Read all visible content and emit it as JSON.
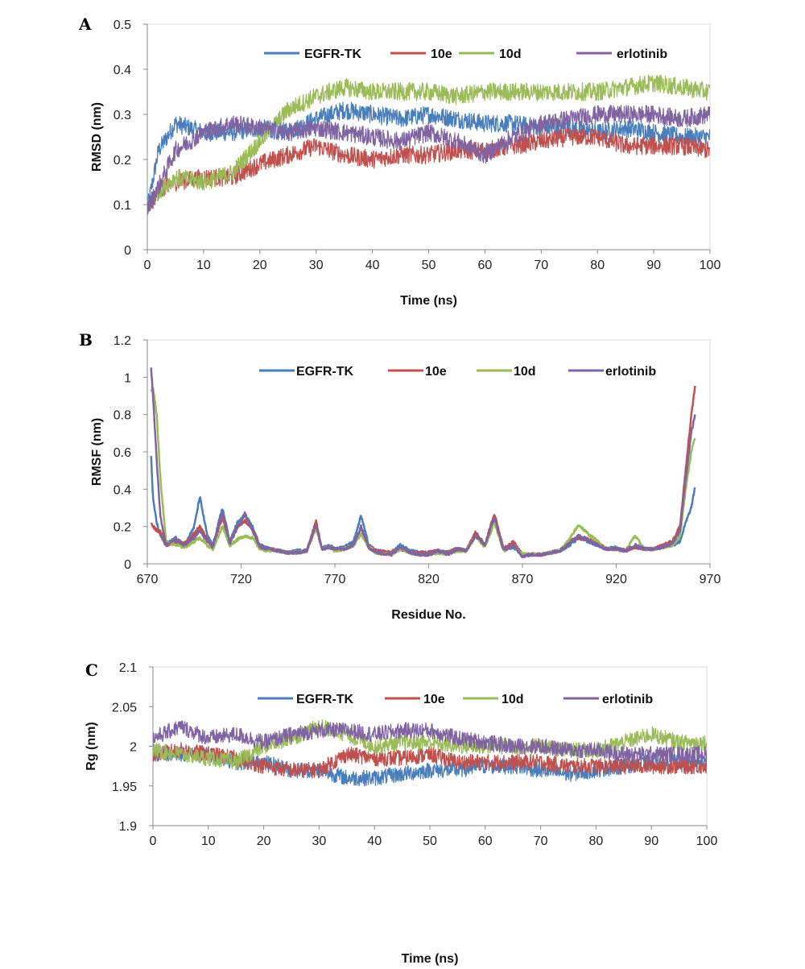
{
  "chart_data": [
    {
      "panel": "A",
      "type": "line",
      "xlabel": "Time (ns)",
      "ylabel": "RMSD (nm)",
      "xlim": [
        0,
        100
      ],
      "ylim": [
        0,
        0.5
      ],
      "xticks": [
        0,
        10,
        20,
        30,
        40,
        50,
        60,
        70,
        80,
        90,
        100
      ],
      "yticks": [
        0,
        0.1,
        0.2,
        0.3,
        0.4,
        0.5
      ],
      "legend_position": "top",
      "grid": false,
      "noise": 0.02,
      "series": [
        {
          "name": "EGFR-TK",
          "color": "#4a7ebb",
          "x": [
            0,
            2,
            5,
            10,
            15,
            20,
            25,
            30,
            35,
            40,
            45,
            50,
            55,
            60,
            65,
            70,
            75,
            80,
            85,
            90,
            95,
            100
          ],
          "values": [
            0.09,
            0.22,
            0.28,
            0.26,
            0.26,
            0.27,
            0.26,
            0.29,
            0.31,
            0.3,
            0.29,
            0.3,
            0.29,
            0.28,
            0.28,
            0.27,
            0.27,
            0.26,
            0.27,
            0.26,
            0.25,
            0.25
          ]
        },
        {
          "name": "10e",
          "color": "#c0504d",
          "x": [
            0,
            2,
            5,
            10,
            15,
            20,
            25,
            30,
            35,
            40,
            45,
            50,
            55,
            60,
            65,
            70,
            75,
            80,
            85,
            90,
            95,
            100
          ],
          "values": [
            0.09,
            0.13,
            0.15,
            0.16,
            0.16,
            0.19,
            0.21,
            0.23,
            0.21,
            0.2,
            0.21,
            0.21,
            0.22,
            0.22,
            0.23,
            0.24,
            0.25,
            0.25,
            0.23,
            0.23,
            0.23,
            0.22
          ]
        },
        {
          "name": "10d",
          "color": "#9bbb59",
          "x": [
            0,
            2,
            5,
            10,
            15,
            20,
            25,
            30,
            35,
            40,
            45,
            50,
            55,
            60,
            65,
            70,
            75,
            80,
            85,
            90,
            95,
            100
          ],
          "values": [
            0.09,
            0.13,
            0.16,
            0.15,
            0.17,
            0.24,
            0.31,
            0.34,
            0.36,
            0.35,
            0.35,
            0.35,
            0.34,
            0.35,
            0.35,
            0.35,
            0.35,
            0.35,
            0.36,
            0.37,
            0.36,
            0.35
          ]
        },
        {
          "name": "erlotinib",
          "color": "#8064a2",
          "x": [
            0,
            2,
            5,
            10,
            15,
            20,
            25,
            30,
            35,
            40,
            45,
            50,
            55,
            60,
            65,
            70,
            75,
            80,
            85,
            90,
            95,
            100
          ],
          "values": [
            0.09,
            0.14,
            0.22,
            0.26,
            0.28,
            0.27,
            0.26,
            0.27,
            0.26,
            0.25,
            0.24,
            0.26,
            0.24,
            0.21,
            0.25,
            0.28,
            0.29,
            0.3,
            0.3,
            0.3,
            0.29,
            0.3
          ]
        }
      ]
    },
    {
      "panel": "B",
      "type": "line",
      "xlabel": "Residue No.",
      "ylabel": "RMSF (nm)",
      "xlim": [
        670,
        970
      ],
      "ylim": [
        0,
        1.2
      ],
      "xticks": [
        670,
        720,
        770,
        820,
        870,
        920,
        970
      ],
      "yticks": [
        0,
        0.2,
        0.4,
        0.6,
        0.8,
        1,
        1.2
      ],
      "legend_position": "top",
      "grid": false,
      "noise": 0.008,
      "series": [
        {
          "name": "EGFR-TK",
          "color": "#4a7ebb",
          "x": [
            672,
            673,
            675,
            677,
            680,
            685,
            690,
            695,
            698,
            702,
            705,
            710,
            714,
            718,
            722,
            726,
            730,
            735,
            740,
            745,
            750,
            755,
            760,
            763,
            767,
            770,
            775,
            780,
            784,
            788,
            792,
            800,
            805,
            810,
            815,
            820,
            825,
            830,
            835,
            840,
            845,
            850,
            855,
            860,
            865,
            870,
            875,
            880,
            885,
            890,
            895,
            900,
            905,
            910,
            915,
            920,
            925,
            930,
            935,
            940,
            945,
            950,
            954,
            957,
            960,
            962
          ],
          "values": [
            0.58,
            0.35,
            0.22,
            0.15,
            0.1,
            0.14,
            0.1,
            0.2,
            0.36,
            0.15,
            0.1,
            0.3,
            0.12,
            0.22,
            0.26,
            0.2,
            0.1,
            0.08,
            0.07,
            0.06,
            0.07,
            0.07,
            0.22,
            0.08,
            0.1,
            0.08,
            0.09,
            0.12,
            0.26,
            0.1,
            0.07,
            0.06,
            0.1,
            0.07,
            0.06,
            0.06,
            0.07,
            0.06,
            0.08,
            0.07,
            0.16,
            0.1,
            0.24,
            0.08,
            0.09,
            0.05,
            0.05,
            0.05,
            0.06,
            0.07,
            0.1,
            0.14,
            0.12,
            0.1,
            0.08,
            0.09,
            0.07,
            0.09,
            0.08,
            0.08,
            0.09,
            0.1,
            0.12,
            0.22,
            0.3,
            0.41
          ]
        },
        {
          "name": "10e",
          "color": "#c0504d",
          "x": [
            672,
            673,
            675,
            677,
            680,
            685,
            690,
            695,
            698,
            702,
            705,
            710,
            714,
            718,
            722,
            726,
            730,
            735,
            740,
            745,
            750,
            755,
            760,
            763,
            767,
            770,
            775,
            780,
            784,
            788,
            792,
            800,
            805,
            810,
            815,
            820,
            825,
            830,
            835,
            840,
            845,
            850,
            855,
            860,
            865,
            870,
            875,
            880,
            885,
            890,
            895,
            900,
            905,
            910,
            915,
            920,
            925,
            930,
            935,
            940,
            945,
            950,
            954,
            957,
            960,
            962
          ],
          "values": [
            0.22,
            0.2,
            0.18,
            0.17,
            0.1,
            0.12,
            0.11,
            0.16,
            0.2,
            0.13,
            0.09,
            0.25,
            0.11,
            0.2,
            0.23,
            0.19,
            0.09,
            0.08,
            0.07,
            0.06,
            0.06,
            0.07,
            0.23,
            0.08,
            0.09,
            0.08,
            0.08,
            0.1,
            0.19,
            0.09,
            0.07,
            0.06,
            0.08,
            0.06,
            0.06,
            0.06,
            0.07,
            0.06,
            0.08,
            0.07,
            0.17,
            0.1,
            0.27,
            0.08,
            0.12,
            0.05,
            0.05,
            0.05,
            0.06,
            0.07,
            0.12,
            0.14,
            0.13,
            0.11,
            0.08,
            0.08,
            0.07,
            0.09,
            0.08,
            0.08,
            0.1,
            0.12,
            0.2,
            0.5,
            0.8,
            0.95
          ]
        },
        {
          "name": "10d",
          "color": "#9bbb59",
          "x": [
            672,
            673,
            675,
            677,
            680,
            685,
            690,
            695,
            698,
            702,
            705,
            710,
            714,
            718,
            722,
            726,
            730,
            735,
            740,
            745,
            750,
            755,
            760,
            763,
            767,
            770,
            775,
            780,
            784,
            788,
            792,
            800,
            805,
            810,
            815,
            820,
            825,
            830,
            835,
            840,
            845,
            850,
            855,
            860,
            865,
            870,
            875,
            880,
            885,
            890,
            895,
            900,
            905,
            910,
            915,
            920,
            925,
            930,
            935,
            940,
            945,
            950,
            954,
            957,
            960,
            962
          ],
          "values": [
            0.92,
            0.95,
            0.8,
            0.45,
            0.12,
            0.1,
            0.09,
            0.12,
            0.14,
            0.1,
            0.08,
            0.2,
            0.1,
            0.13,
            0.15,
            0.14,
            0.08,
            0.07,
            0.07,
            0.06,
            0.06,
            0.07,
            0.19,
            0.08,
            0.09,
            0.07,
            0.08,
            0.1,
            0.16,
            0.09,
            0.06,
            0.05,
            0.08,
            0.06,
            0.05,
            0.05,
            0.06,
            0.05,
            0.07,
            0.07,
            0.15,
            0.09,
            0.22,
            0.07,
            0.1,
            0.05,
            0.05,
            0.05,
            0.06,
            0.07,
            0.13,
            0.21,
            0.16,
            0.12,
            0.08,
            0.08,
            0.07,
            0.15,
            0.08,
            0.08,
            0.09,
            0.1,
            0.15,
            0.4,
            0.6,
            0.68
          ]
        },
        {
          "name": "erlotinib",
          "color": "#8064a2",
          "x": [
            672,
            673,
            675,
            677,
            680,
            685,
            690,
            695,
            698,
            702,
            705,
            710,
            714,
            718,
            722,
            726,
            730,
            735,
            740,
            745,
            750,
            755,
            760,
            763,
            767,
            770,
            775,
            780,
            784,
            788,
            792,
            800,
            805,
            810,
            815,
            820,
            825,
            830,
            835,
            840,
            845,
            850,
            855,
            860,
            865,
            870,
            875,
            880,
            885,
            890,
            895,
            900,
            905,
            910,
            915,
            920,
            925,
            930,
            935,
            940,
            945,
            950,
            954,
            957,
            960,
            962
          ],
          "values": [
            1.05,
            0.9,
            0.55,
            0.25,
            0.1,
            0.13,
            0.1,
            0.14,
            0.18,
            0.12,
            0.09,
            0.28,
            0.11,
            0.19,
            0.27,
            0.18,
            0.09,
            0.08,
            0.07,
            0.06,
            0.06,
            0.07,
            0.21,
            0.08,
            0.09,
            0.08,
            0.08,
            0.1,
            0.2,
            0.09,
            0.06,
            0.05,
            0.09,
            0.06,
            0.05,
            0.05,
            0.07,
            0.05,
            0.08,
            0.07,
            0.15,
            0.1,
            0.25,
            0.07,
            0.1,
            0.04,
            0.05,
            0.05,
            0.06,
            0.07,
            0.11,
            0.15,
            0.13,
            0.1,
            0.08,
            0.08,
            0.07,
            0.1,
            0.08,
            0.08,
            0.09,
            0.11,
            0.18,
            0.45,
            0.7,
            0.8
          ]
        }
      ]
    },
    {
      "panel": "C",
      "type": "line",
      "xlabel": "Time (ns)",
      "ylabel": "Rg (nm)",
      "xlim": [
        0,
        100
      ],
      "ylim": [
        1.9,
        2.1
      ],
      "xticks": [
        0,
        10,
        20,
        30,
        40,
        50,
        60,
        70,
        80,
        90,
        100
      ],
      "yticks": [
        1.9,
        1.95,
        2,
        2.05,
        2.1
      ],
      "legend_position": "top",
      "grid": false,
      "noise": 0.01,
      "series": [
        {
          "name": "EGFR-TK",
          "color": "#4a7ebb",
          "x": [
            0,
            5,
            10,
            15,
            20,
            25,
            30,
            35,
            40,
            45,
            50,
            55,
            60,
            65,
            70,
            75,
            80,
            85,
            90,
            95,
            100
          ],
          "values": [
            1.99,
            1.99,
            1.99,
            1.98,
            1.98,
            1.97,
            1.97,
            1.96,
            1.96,
            1.965,
            1.97,
            1.97,
            1.975,
            1.975,
            1.97,
            1.965,
            1.97,
            1.975,
            1.98,
            1.98,
            1.98
          ]
        },
        {
          "name": "10e",
          "color": "#c0504d",
          "x": [
            0,
            5,
            10,
            15,
            20,
            25,
            30,
            35,
            40,
            45,
            50,
            55,
            60,
            65,
            70,
            75,
            80,
            85,
            90,
            95,
            100
          ],
          "values": [
            1.99,
            1.995,
            1.99,
            1.985,
            1.975,
            1.97,
            1.97,
            1.99,
            1.985,
            1.985,
            1.99,
            1.98,
            1.98,
            1.98,
            1.98,
            1.975,
            1.975,
            1.975,
            1.975,
            1.975,
            1.975
          ]
        },
        {
          "name": "10d",
          "color": "#9bbb59",
          "x": [
            0,
            5,
            10,
            15,
            20,
            25,
            30,
            35,
            40,
            45,
            50,
            55,
            60,
            65,
            70,
            75,
            80,
            85,
            90,
            95,
            100
          ],
          "values": [
            1.995,
            1.99,
            1.985,
            1.98,
            2.0,
            2.01,
            2.025,
            2.015,
            2.0,
            2.005,
            2.005,
            2.0,
            2.0,
            2.0,
            2.0,
            1.995,
            1.995,
            2.005,
            2.015,
            2.005,
            2.005
          ]
        },
        {
          "name": "erlotinib",
          "color": "#8064a2",
          "x": [
            0,
            5,
            10,
            15,
            20,
            25,
            30,
            35,
            40,
            45,
            50,
            55,
            60,
            65,
            70,
            75,
            80,
            85,
            90,
            95,
            100
          ],
          "values": [
            2.01,
            2.025,
            2.01,
            2.015,
            2.005,
            2.015,
            2.02,
            2.02,
            2.015,
            2.02,
            2.02,
            2.01,
            2.005,
            2.0,
            2.0,
            1.995,
            1.995,
            1.99,
            1.99,
            1.99,
            1.99
          ]
        }
      ]
    }
  ]
}
